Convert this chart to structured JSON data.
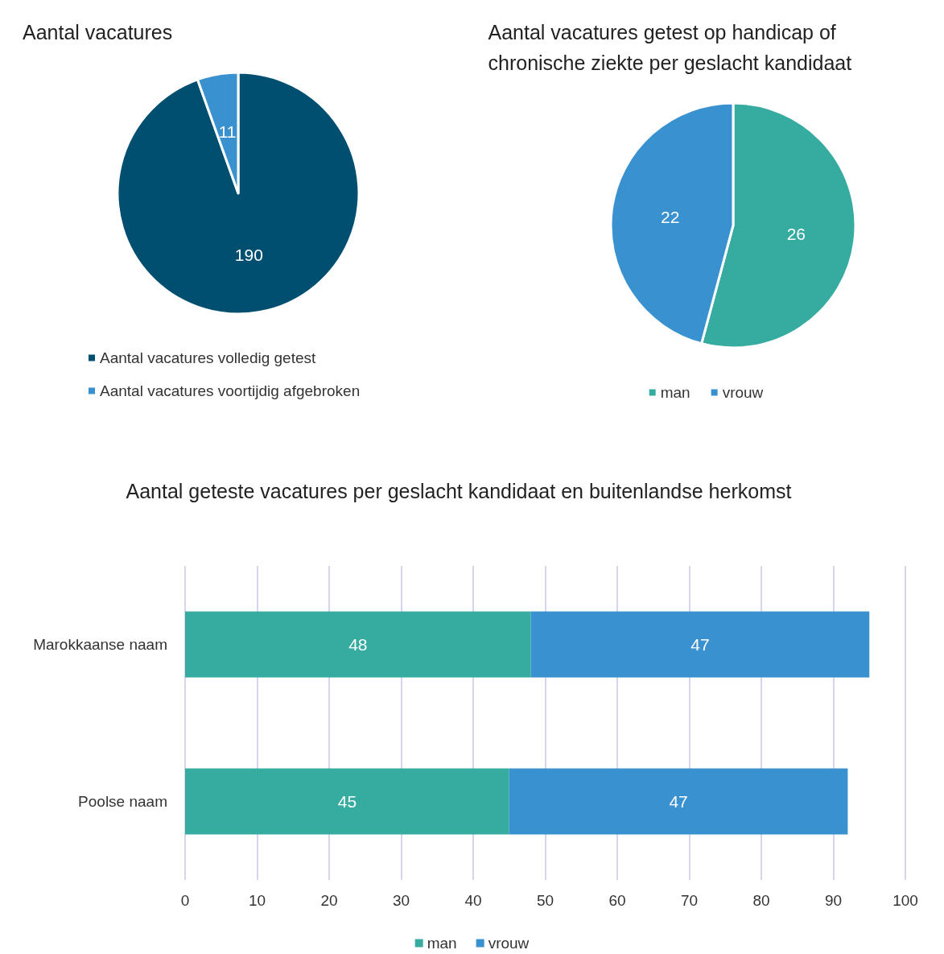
{
  "chart_data": [
    {
      "type": "pie",
      "title": "Aantal vacatures",
      "categories": [
        "Aantal vacatures volledig getest",
        "Aantal vacatures voortijdig afgebroken"
      ],
      "values": [
        190,
        11
      ],
      "colors": [
        "#004f71",
        "#3a91d0"
      ],
      "data_labels": true,
      "legend": "bottom"
    },
    {
      "type": "pie",
      "title": "Aantal vacatures getest op handicap of chronische ziekte per geslacht kandidaat",
      "categories": [
        "man",
        "vrouw"
      ],
      "values": [
        26,
        22
      ],
      "colors": [
        "#36aba0",
        "#3a91d0"
      ],
      "data_labels": true,
      "legend": "bottom"
    },
    {
      "type": "bar",
      "orientation": "horizontal",
      "stacked": true,
      "title": "Aantal geteste vacatures per geslacht kandidaat en buitenlandse herkomst",
      "categories": [
        "Marokkaanse naam",
        "Poolse naam"
      ],
      "series": [
        {
          "name": "man",
          "color": "#36aba0",
          "values": [
            48,
            45
          ]
        },
        {
          "name": "vrouw",
          "color": "#3a91d0",
          "values": [
            47,
            47
          ]
        }
      ],
      "xlim": [
        0,
        100
      ],
      "xticks": [
        0,
        10,
        20,
        30,
        40,
        50,
        60,
        70,
        80,
        90,
        100
      ],
      "grid": "x",
      "data_labels": true,
      "legend": "bottom"
    }
  ]
}
